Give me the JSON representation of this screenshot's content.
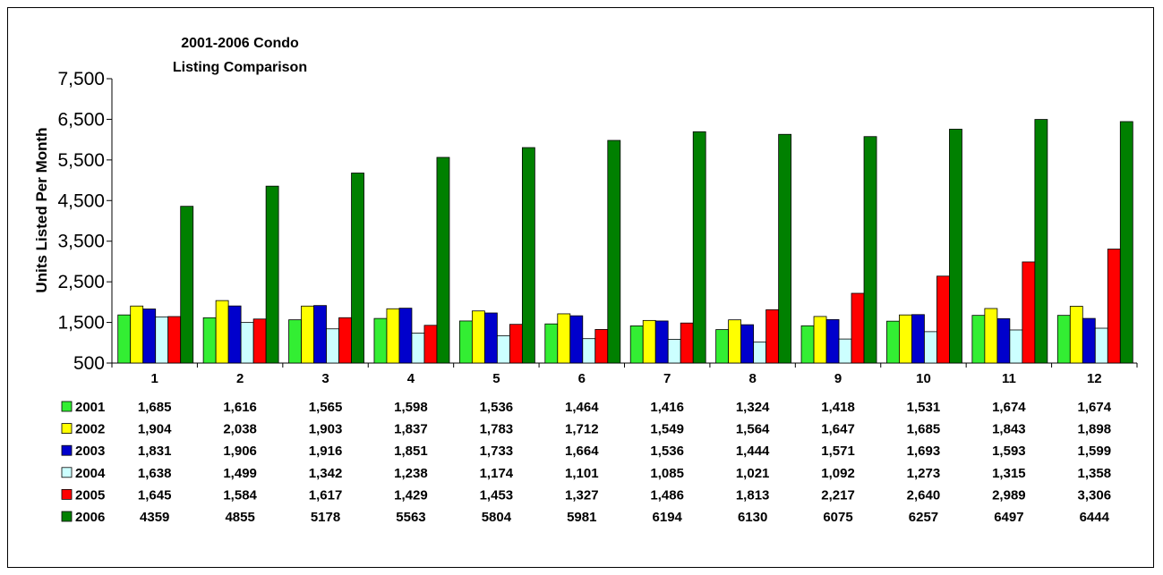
{
  "chart_data": {
    "type": "bar",
    "title": "2001-2006 Condo Listing Comparison",
    "title_lines": [
      "2001-2006 Condo",
      "Listing Comparison"
    ],
    "ylabel": "Units Listed Per Month",
    "xlabel": "",
    "ylim": [
      500,
      7500
    ],
    "yticks": [
      500,
      1500,
      2500,
      3500,
      4500,
      5500,
      6500,
      7500
    ],
    "ytick_labels": [
      "500",
      "1,500",
      "2,500",
      "3,500",
      "4,500",
      "5,500",
      "6,500",
      "7,500"
    ],
    "categories": [
      "1",
      "2",
      "3",
      "4",
      "5",
      "6",
      "7",
      "8",
      "9",
      "10",
      "11",
      "12"
    ],
    "legend_position": "data-table-below",
    "grid": false,
    "series": [
      {
        "name": "2001",
        "color": "#33ee33",
        "values": [
          1685,
          1616,
          1565,
          1598,
          1536,
          1464,
          1416,
          1324,
          1418,
          1531,
          1674,
          1674
        ],
        "labels": [
          "1,685",
          "1,616",
          "1,565",
          "1,598",
          "1,536",
          "1,464",
          "1,416",
          "1,324",
          "1,418",
          "1,531",
          "1,674",
          "1,674"
        ]
      },
      {
        "name": "2002",
        "color": "#ffff00",
        "values": [
          1904,
          2038,
          1903,
          1837,
          1783,
          1712,
          1549,
          1564,
          1647,
          1685,
          1843,
          1898
        ],
        "labels": [
          "1,904",
          "2,038",
          "1,903",
          "1,837",
          "1,783",
          "1,712",
          "1,549",
          "1,564",
          "1,647",
          "1,685",
          "1,843",
          "1,898"
        ]
      },
      {
        "name": "2003",
        "color": "#0000cc",
        "values": [
          1831,
          1906,
          1916,
          1851,
          1733,
          1664,
          1536,
          1444,
          1571,
          1693,
          1593,
          1599
        ],
        "labels": [
          "1,831",
          "1,906",
          "1,916",
          "1,851",
          "1,733",
          "1,664",
          "1,536",
          "1,444",
          "1,571",
          "1,693",
          "1,593",
          "1,599"
        ]
      },
      {
        "name": "2004",
        "color": "#ccffff",
        "values": [
          1638,
          1499,
          1342,
          1238,
          1174,
          1101,
          1085,
          1021,
          1092,
          1273,
          1315,
          1358
        ],
        "labels": [
          "1,638",
          "1,499",
          "1,342",
          "1,238",
          "1,174",
          "1,101",
          "1,085",
          "1,021",
          "1,092",
          "1,273",
          "1,315",
          "1,358"
        ]
      },
      {
        "name": "2005",
        "color": "#ff0000",
        "values": [
          1645,
          1584,
          1617,
          1429,
          1453,
          1327,
          1486,
          1813,
          2217,
          2640,
          2989,
          3306
        ],
        "labels": [
          "1,645",
          "1,584",
          "1,617",
          "1,429",
          "1,453",
          "1,327",
          "1,486",
          "1,813",
          "2,217",
          "2,640",
          "2,989",
          "3,306"
        ]
      },
      {
        "name": "2006",
        "color": "#008000",
        "values": [
          4359,
          4855,
          5178,
          5563,
          5804,
          5981,
          6194,
          6130,
          6075,
          6257,
          6497,
          6444
        ],
        "labels": [
          "4359",
          "4855",
          "5178",
          "5563",
          "5804",
          "5981",
          "6194",
          "6130",
          "6075",
          "6257",
          "6497",
          "6444"
        ]
      }
    ]
  }
}
